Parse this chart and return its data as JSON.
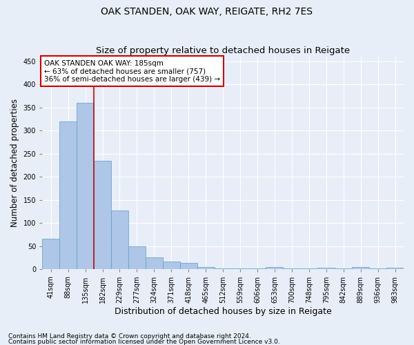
{
  "title": "OAK STANDEN, OAK WAY, REIGATE, RH2 7ES",
  "subtitle": "Size of property relative to detached houses in Reigate",
  "xlabel": "Distribution of detached houses by size in Reigate",
  "ylabel": "Number of detached properties",
  "footnote1": "Contains HM Land Registry data © Crown copyright and database right 2024.",
  "footnote2": "Contains public sector information licensed under the Open Government Licence v3.0.",
  "bar_labels": [
    "41sqm",
    "88sqm",
    "135sqm",
    "182sqm",
    "229sqm",
    "277sqm",
    "324sqm",
    "371sqm",
    "418sqm",
    "465sqm",
    "512sqm",
    "559sqm",
    "606sqm",
    "653sqm",
    "700sqm",
    "748sqm",
    "795sqm",
    "842sqm",
    "889sqm",
    "936sqm",
    "983sqm"
  ],
  "bar_values": [
    67,
    320,
    360,
    235,
    127,
    50,
    26,
    17,
    14,
    5,
    2,
    2,
    2,
    5,
    2,
    2,
    3,
    2,
    5,
    2,
    4
  ],
  "bar_color": "#aec6e8",
  "bar_edge_color": "#5a9ec8",
  "property_line_label": "OAK STANDEN OAK WAY: 185sqm",
  "annotation_line1": "← 63% of detached houses are smaller (757)",
  "annotation_line2": "36% of semi-detached houses are larger (439) →",
  "annotation_box_color": "#ffffff",
  "annotation_box_edge_color": "#cc0000",
  "vline_color": "#cc0000",
  "vline_x_index": 2.5,
  "ylim": [
    0,
    460
  ],
  "yticks": [
    0,
    50,
    100,
    150,
    200,
    250,
    300,
    350,
    400,
    450
  ],
  "background_color": "#e8eef8",
  "grid_color": "#ffffff",
  "title_fontsize": 10,
  "subtitle_fontsize": 9.5,
  "xlabel_fontsize": 9,
  "ylabel_fontsize": 8.5,
  "tick_fontsize": 7,
  "annot_fontsize": 7.5,
  "footnote_fontsize": 6.5
}
